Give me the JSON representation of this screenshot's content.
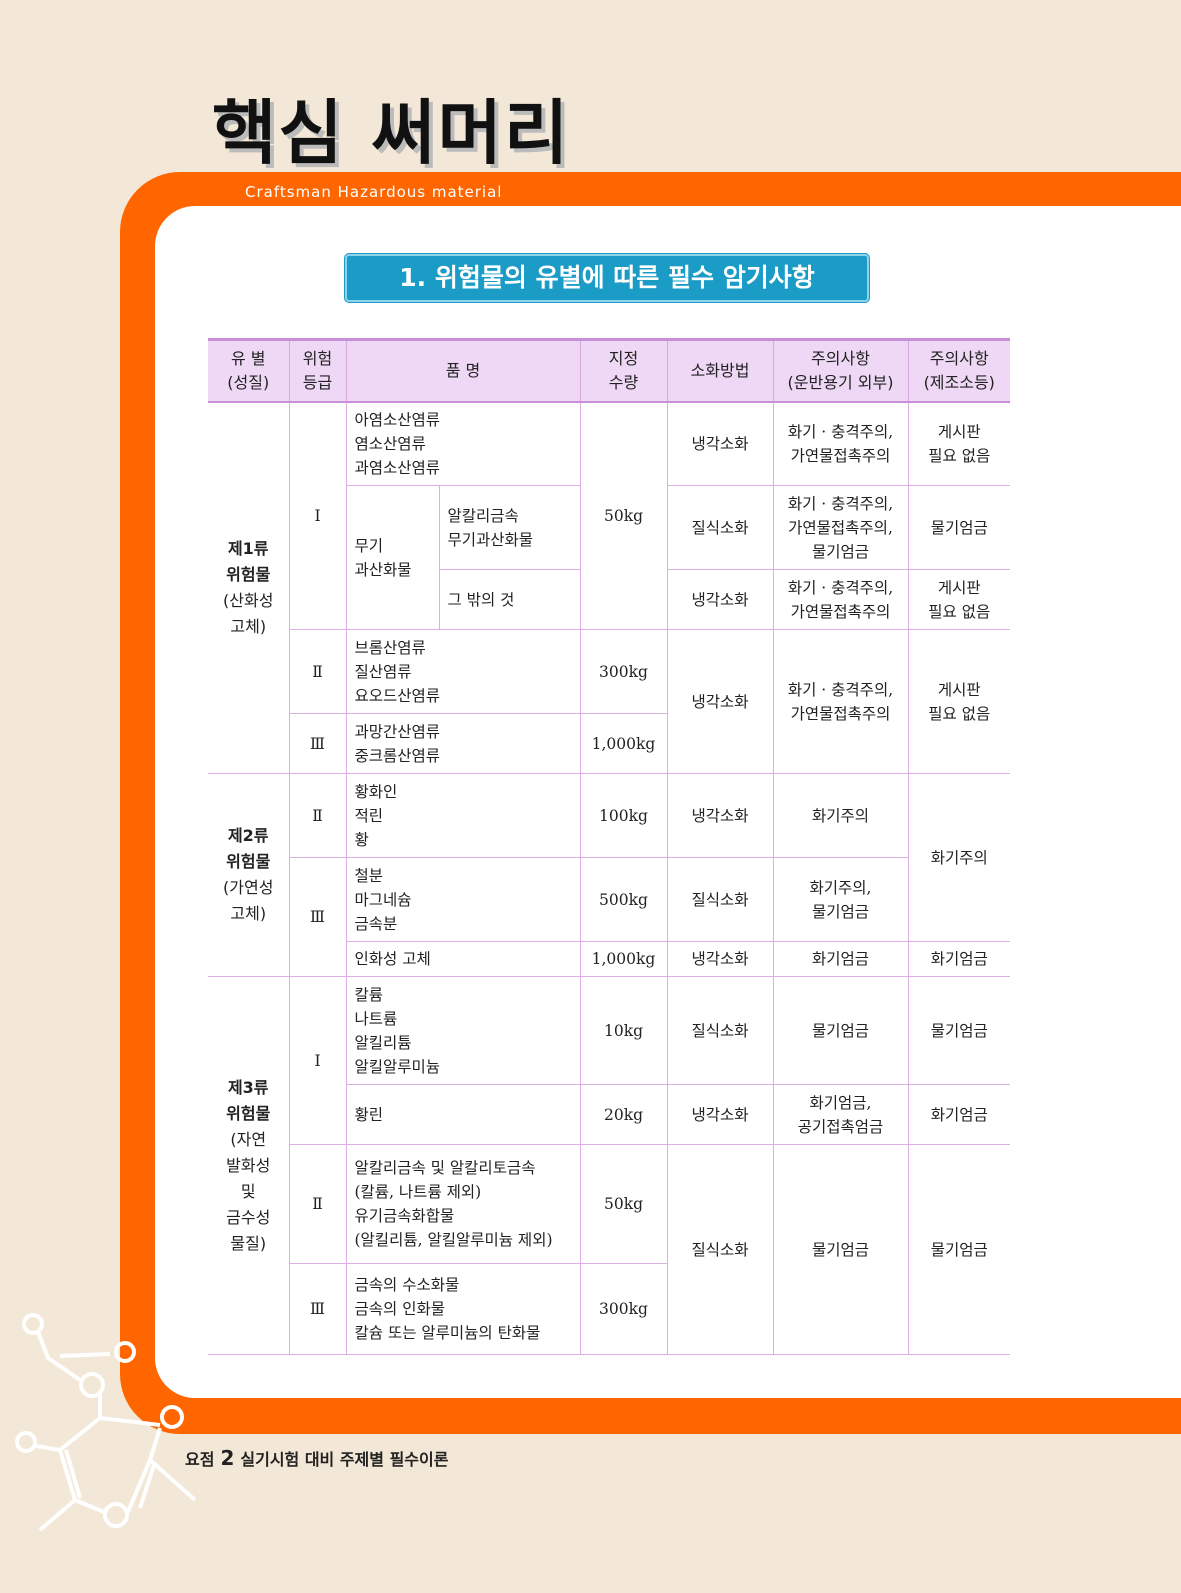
{
  "title": "핵심 써머리",
  "subtitle": "Craftsman Hazardous material",
  "section_title": "1. 위험물의 유별에 따른 필수 암기사항",
  "table": {
    "headers": [
      "유 별\n(성질)",
      "위험\n등급",
      "품 명",
      "지정\n수량",
      "소화방법",
      "주의사항\n(운반용기 외부)",
      "주의사항\n(제조소등)"
    ],
    "rows": [
      [
        {
          "t": "제1류\n위험물\n(산화성\n고체)",
          "rs": 5,
          "c": "g"
        },
        {
          "t": "Ⅰ",
          "rs": 3
        },
        {
          "t": "아염소산염류\n염소산염류\n과염소산염류",
          "cs": 2,
          "c": "l"
        },
        {
          "t": "50kg",
          "rs": 3
        },
        {
          "t": "냉각소화"
        },
        {
          "t": "화기 · 충격주의,\n가연물접촉주의"
        },
        {
          "t": "게시판\n필요 없음"
        }
      ],
      [
        {
          "t": "무기\n과산화물",
          "rs": 2,
          "c": "l"
        },
        {
          "t": "알칼리금속\n무기과산화물",
          "c": "l"
        },
        {
          "t": "질식소화"
        },
        {
          "t": "화기 · 충격주의,\n가연물접촉주의,\n물기엄금"
        },
        {
          "t": "물기엄금"
        }
      ],
      [
        {
          "t": "그 밖의 것",
          "c": "l"
        },
        {
          "t": "냉각소화"
        },
        {
          "t": "화기 · 충격주의,\n가연물접촉주의"
        },
        {
          "t": "게시판\n필요 없음"
        }
      ],
      [
        {
          "t": "Ⅱ"
        },
        {
          "t": "브롬산염류\n질산염류\n요오드산염류",
          "cs": 2,
          "c": "l"
        },
        {
          "t": "300kg"
        },
        {
          "t": "냉각소화",
          "rs": 2
        },
        {
          "t": "화기 · 충격주의,\n가연물접촉주의",
          "rs": 2
        },
        {
          "t": "게시판\n필요 없음",
          "rs": 2
        }
      ],
      [
        {
          "t": "Ⅲ"
        },
        {
          "t": "과망간산염류\n중크롬산염류",
          "cs": 2,
          "c": "l"
        },
        {
          "t": "1,000kg"
        }
      ],
      [
        {
          "t": "제2류\n위험물\n(가연성\n고체)",
          "rs": 3,
          "c": "g"
        },
        {
          "t": "Ⅱ"
        },
        {
          "t": "황화인\n적린\n황",
          "cs": 2,
          "c": "l"
        },
        {
          "t": "100kg"
        },
        {
          "t": "냉각소화"
        },
        {
          "t": "화기주의"
        },
        {
          "t": "화기주의",
          "rs": 2
        }
      ],
      [
        {
          "t": "Ⅲ",
          "rs": 2
        },
        {
          "t": "철분\n마그네슘\n금속분",
          "cs": 2,
          "c": "l"
        },
        {
          "t": "500kg"
        },
        {
          "t": "질식소화"
        },
        {
          "t": "화기주의,\n물기엄금"
        }
      ],
      [
        {
          "t": "인화성 고체",
          "cs": 2,
          "c": "l"
        },
        {
          "t": "1,000kg"
        },
        {
          "t": "냉각소화"
        },
        {
          "t": "화기엄금"
        },
        {
          "t": "화기엄금"
        }
      ],
      [
        {
          "t": "제3류\n위험물\n(자연\n발화성\n및\n금수성\n물질)",
          "rs": 4,
          "c": "g"
        },
        {
          "t": "Ⅰ",
          "rs": 2
        },
        {
          "t": "칼륨\n나트륨\n알킬리튬\n알킬알루미늄",
          "cs": 2,
          "c": "l"
        },
        {
          "t": "10kg"
        },
        {
          "t": "질식소화"
        },
        {
          "t": "물기엄금"
        },
        {
          "t": "물기엄금"
        }
      ],
      [
        {
          "t": "황린",
          "cs": 2,
          "c": "l"
        },
        {
          "t": "20kg"
        },
        {
          "t": "냉각소화"
        },
        {
          "t": "화기엄금,\n공기접촉엄금"
        },
        {
          "t": "화기엄금"
        }
      ],
      [
        {
          "t": "Ⅱ"
        },
        {
          "t": "알칼리금속 및 알칼리토금속\n(칼륨, 나트륨 제외)\n유기금속화합물\n(알킬리튬, 알킬알루미늄 제외)",
          "cs": 2,
          "c": "l"
        },
        {
          "t": "50kg"
        },
        {
          "t": "질식소화",
          "rs": 2
        },
        {
          "t": "물기엄금",
          "rs": 2
        },
        {
          "t": "물기엄금",
          "rs": 2
        }
      ],
      [
        {
          "t": "Ⅲ"
        },
        {
          "t": "금속의 수소화물\n금속의 인화물\n칼슘 또는 알루미늄의 탄화물",
          "cs": 2,
          "c": "l"
        },
        {
          "t": "300kg"
        }
      ]
    ]
  },
  "footer": {
    "label": "요점",
    "number": "2",
    "text": "실기시험 대비 주제별 필수이론"
  },
  "colors": {
    "accent": "#ff6600",
    "section": "#1a9cc7",
    "header_bg": "#efd8f5",
    "background": "#f3e8d7"
  }
}
